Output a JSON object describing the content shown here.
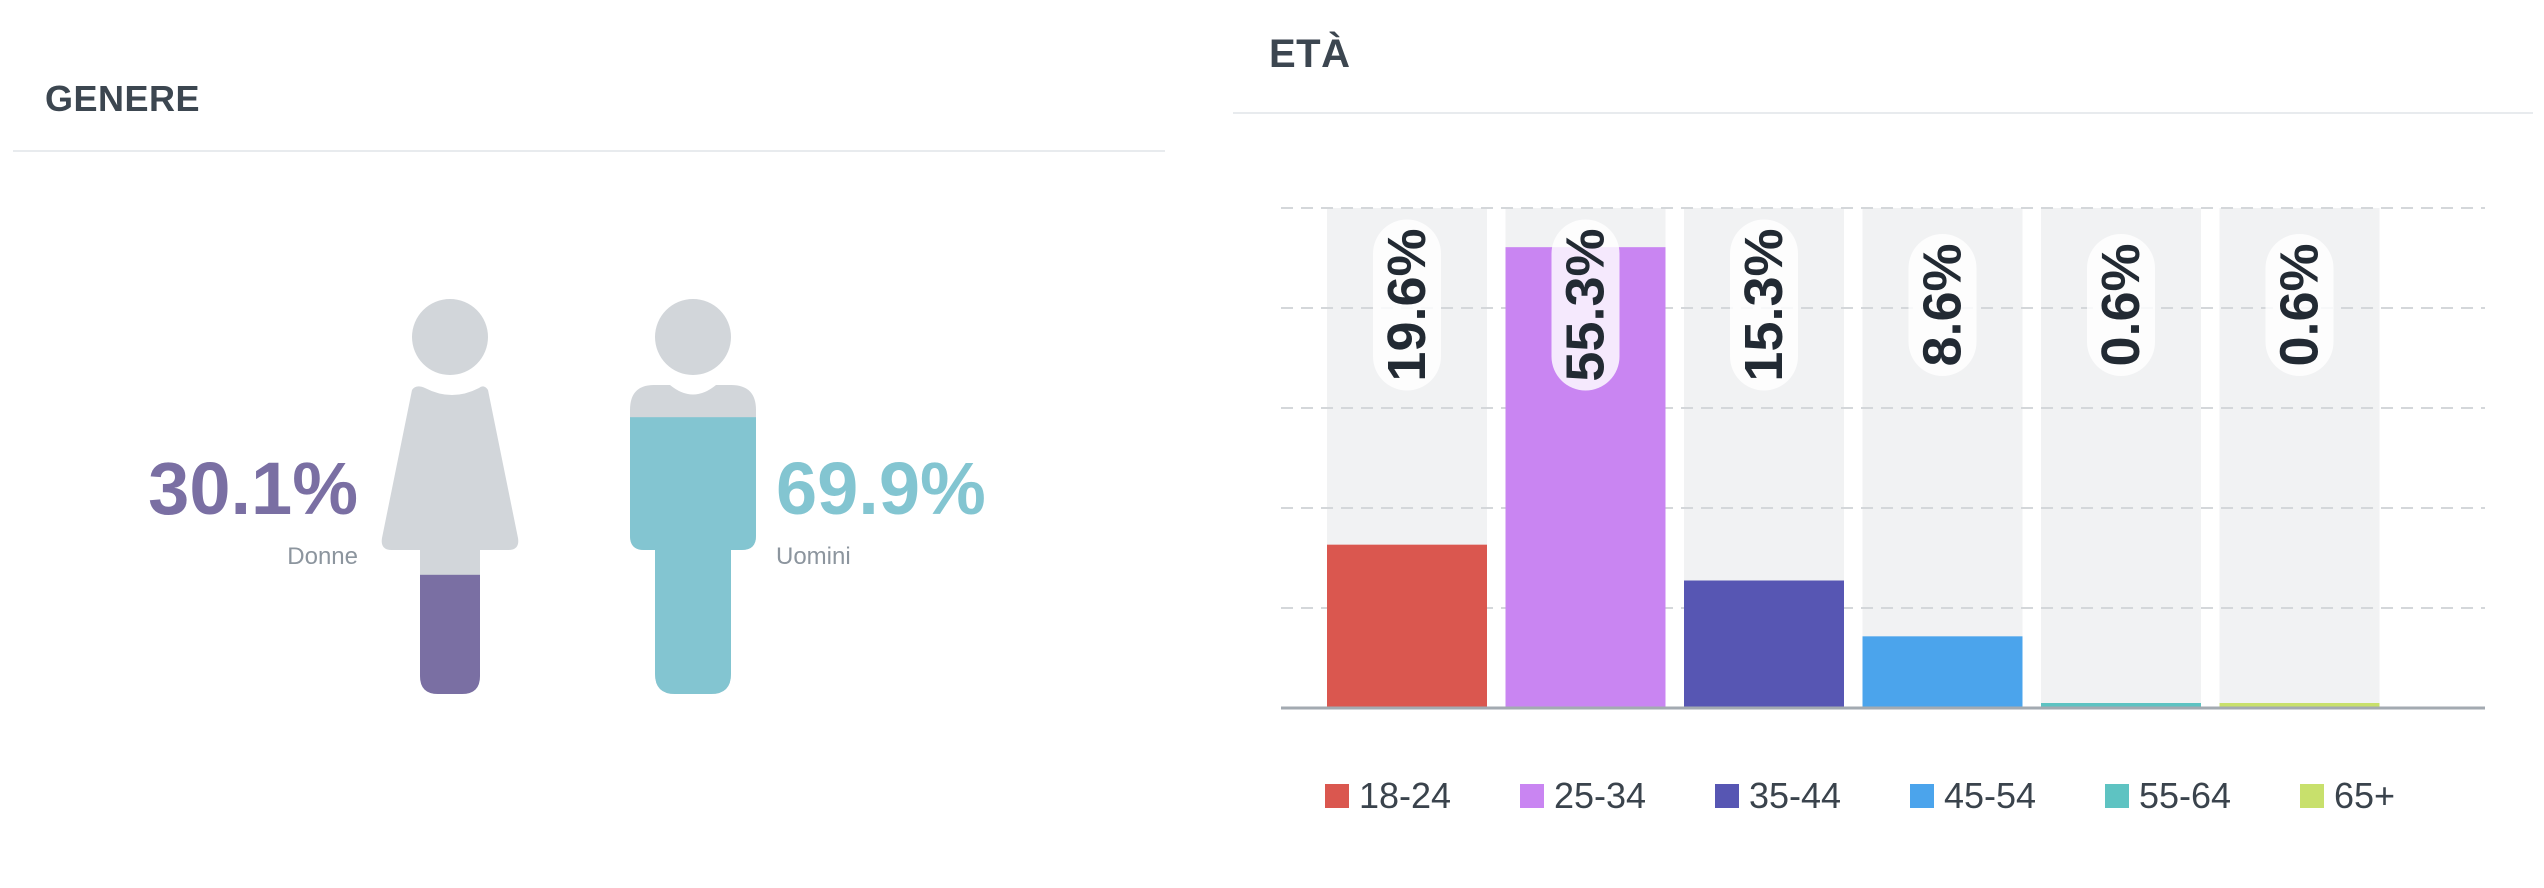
{
  "gender": {
    "title": "GENERE",
    "women": {
      "percent": 30.1,
      "percent_label": "30.1%",
      "label": "Donne",
      "color": "#7a6fa3"
    },
    "men": {
      "percent": 69.9,
      "percent_label": "69.9%",
      "label": "Uomini",
      "color": "#83c5d1"
    },
    "base_color": "#d2d6da"
  },
  "chart_data": {
    "type": "bar",
    "title": "ETÀ",
    "categories": [
      "18-24",
      "25-34",
      "35-44",
      "45-54",
      "55-64",
      "65+"
    ],
    "values": [
      19.6,
      55.3,
      15.3,
      8.6,
      0.6,
      0.6
    ],
    "labels": [
      "19.6%",
      "55.3%",
      "15.3%",
      "8.6%",
      "0.6%",
      "0.6%"
    ],
    "colors": [
      "#da574f",
      "#c985f2",
      "#5756b3",
      "#4ba4ec",
      "#5ec3c2",
      "#c8e06c"
    ],
    "ylim": [
      0,
      60
    ],
    "grid": true,
    "legend": "bottom",
    "xlabel": "",
    "ylabel": ""
  }
}
